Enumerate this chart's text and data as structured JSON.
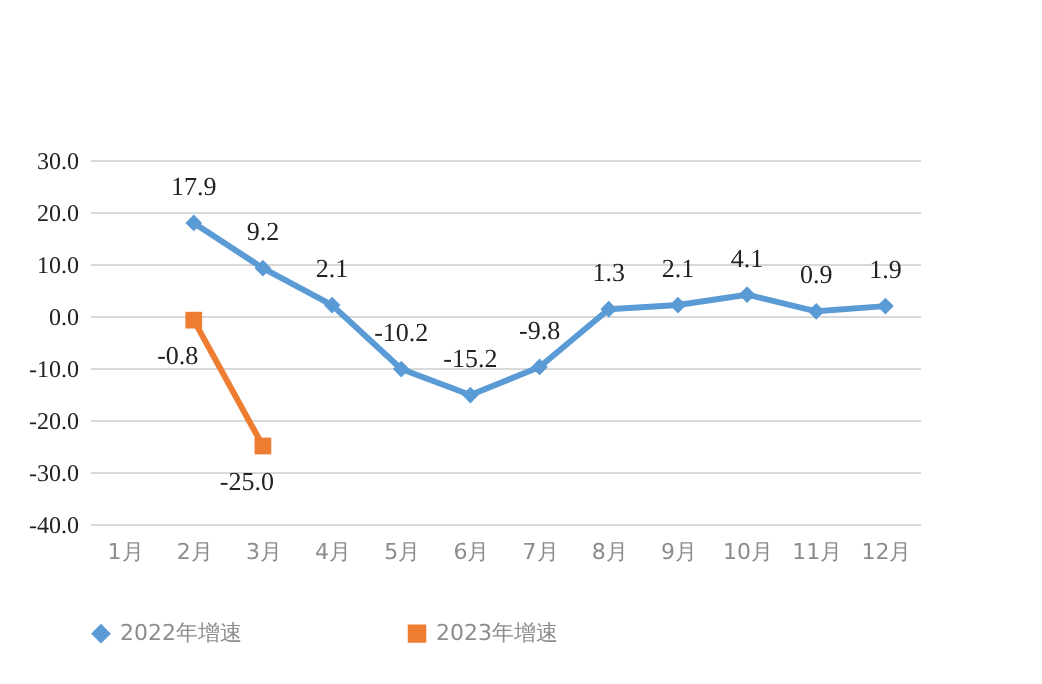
{
  "chart_data": {
    "type": "line",
    "categories": [
      "1月",
      "2月",
      "3月",
      "4月",
      "5月",
      "6月",
      "7月",
      "8月",
      "9月",
      "10月",
      "11月",
      "12月"
    ],
    "series": [
      {
        "name": "2022年增速",
        "color": "#5b9bd5",
        "marker": "diamond",
        "values": [
          null,
          17.9,
          9.2,
          2.1,
          -10.2,
          -15.2,
          -9.8,
          1.3,
          2.1,
          4.1,
          0.9,
          1.9
        ],
        "value_labels": [
          null,
          "17.9",
          "9.2",
          "2.1",
          "-10.2",
          "-15.2",
          "-9.8",
          "1.3",
          "2.1",
          "4.1",
          "0.9",
          "1.9"
        ]
      },
      {
        "name": "2023年增速",
        "color": "#ed7d31",
        "marker": "square",
        "values": [
          null,
          -0.8,
          -25.0,
          null,
          null,
          null,
          null,
          null,
          null,
          null,
          null,
          null
        ],
        "value_labels": [
          null,
          "-0.8",
          "-25.0",
          null,
          null,
          null,
          null,
          null,
          null,
          null,
          null,
          null
        ]
      }
    ],
    "ylim": [
      -40,
      30
    ],
    "yticks": [
      {
        "value": -40,
        "label": "-40.0"
      },
      {
        "value": -30,
        "label": "-30.0"
      },
      {
        "value": -20,
        "label": "-20.0"
      },
      {
        "value": -10,
        "label": "-10.0"
      },
      {
        "value": 0,
        "label": "0.0"
      },
      {
        "value": 10,
        "label": "10.0"
      },
      {
        "value": 20,
        "label": "20.0"
      },
      {
        "value": 30,
        "label": "30.0"
      }
    ],
    "grid": "y",
    "legend": "bottom"
  }
}
